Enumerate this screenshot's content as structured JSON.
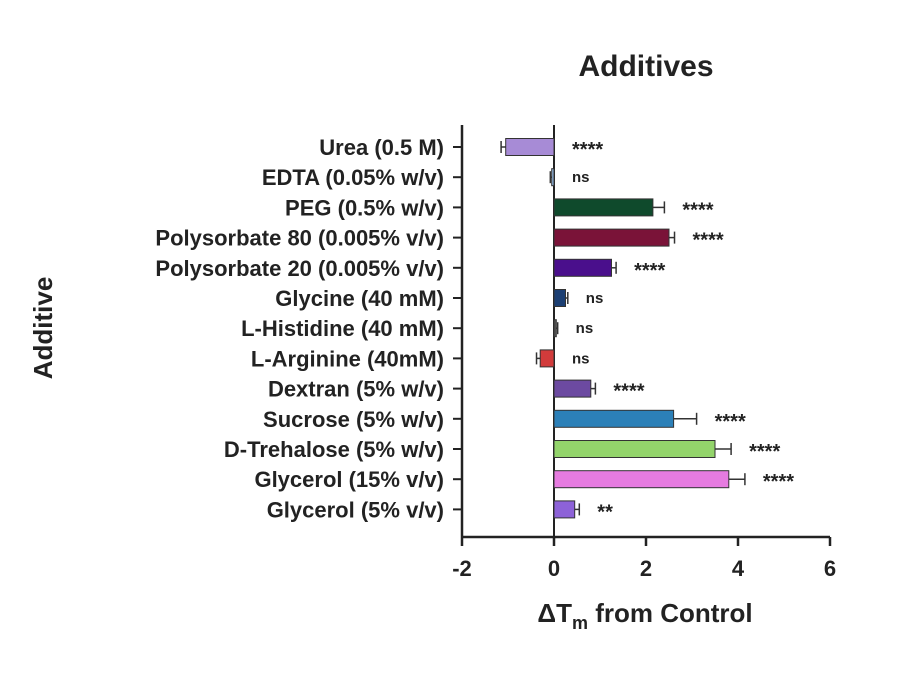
{
  "chart_data": {
    "type": "bar",
    "orientation": "horizontal",
    "title": "Additives",
    "ylabel": "Additive",
    "xlabel_main": "ΔT",
    "xlabel_subscript": "m",
    "xlabel_rest": " from Control",
    "xlim": [
      -2,
      6
    ],
    "xticks": [
      "-2",
      "0",
      "2",
      "4",
      "6"
    ],
    "grid": false,
    "legend": "none",
    "bars": [
      {
        "label": "Urea (0.5 M)",
        "value": -1.05,
        "error": 0.1,
        "color": "#a78bd6",
        "sig": "****"
      },
      {
        "label": "EDTA (0.05% w/v)",
        "value": -0.05,
        "error": 0.03,
        "color": "#8fb3dd",
        "sig": "ns"
      },
      {
        "label": "PEG (0.5% w/v)",
        "value": 2.15,
        "error": 0.25,
        "color": "#0f4a2c",
        "sig": "****"
      },
      {
        "label": "Polysorbate 80 (0.005% v/v)",
        "value": 2.5,
        "error": 0.12,
        "color": "#7a1338",
        "sig": "****"
      },
      {
        "label": "Polysorbate 20 (0.005% v/v)",
        "value": 1.25,
        "error": 0.1,
        "color": "#4a0f8c",
        "sig": "****"
      },
      {
        "label": "Glycine (40 mM)",
        "value": 0.25,
        "error": 0.05,
        "color": "#1c3f73",
        "sig": "ns"
      },
      {
        "label": "L-Histidine (40 mM)",
        "value": 0.05,
        "error": 0.03,
        "color": "#555555",
        "sig": "ns"
      },
      {
        "label": "L-Arginine (40mM)",
        "value": -0.3,
        "error": 0.08,
        "color": "#d23b3b",
        "sig": "ns"
      },
      {
        "label": "Dextran (5% w/v)",
        "value": 0.8,
        "error": 0.1,
        "color": "#6c4aa1",
        "sig": "****"
      },
      {
        "label": "Sucrose (5% w/v)",
        "value": 2.6,
        "error": 0.5,
        "color": "#2c80b8",
        "sig": "****"
      },
      {
        "label": "D-Trehalose (5% w/v)",
        "value": 3.5,
        "error": 0.35,
        "color": "#93d46b",
        "sig": "****"
      },
      {
        "label": "Glycerol (15% v/v)",
        "value": 3.8,
        "error": 0.35,
        "color": "#e67be0",
        "sig": "****"
      },
      {
        "label": "Glycerol (5% v/v)",
        "value": 0.45,
        "error": 0.1,
        "color": "#8d62d8",
        "sig": "**"
      }
    ]
  }
}
